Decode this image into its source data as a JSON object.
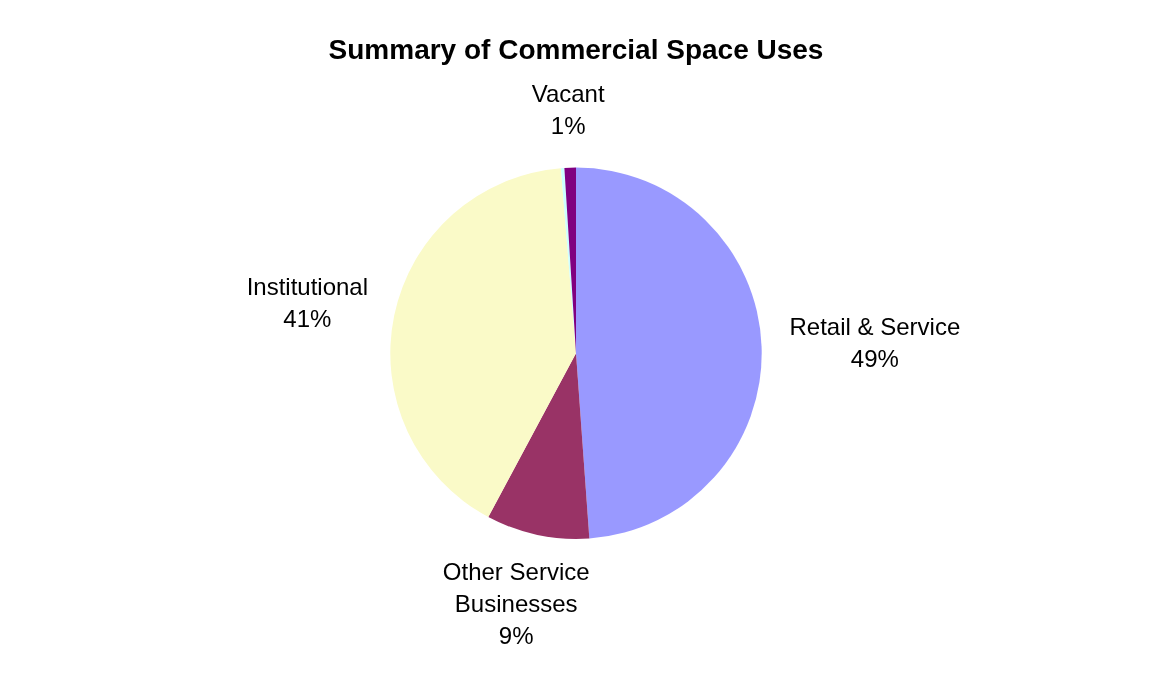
{
  "chart_data": {
    "type": "pie",
    "title": "Summary of Commercial Space Uses",
    "categories": [
      "Retail & Service",
      "Other Service Businesses",
      "Institutional",
      null,
      "Vacant"
    ],
    "values": [
      49,
      9,
      41,
      0.3,
      1
    ],
    "value_labels": [
      "49%",
      "9%",
      "41%",
      null,
      "1%"
    ],
    "colors": [
      "#9999ff",
      "#993366",
      "#fafac8",
      "#ccffff",
      "#800080"
    ],
    "legend": false
  }
}
